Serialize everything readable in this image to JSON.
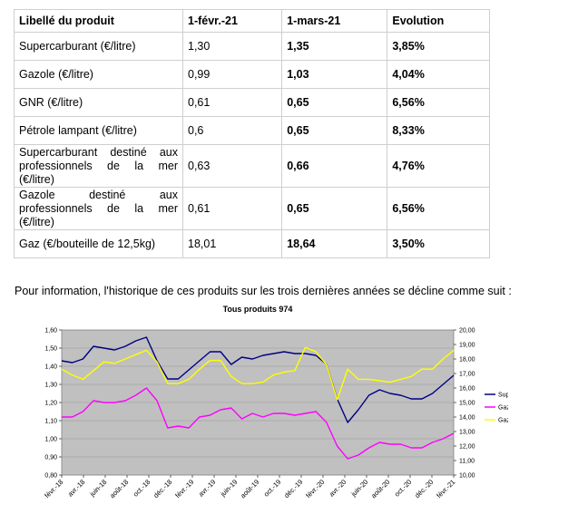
{
  "table": {
    "headers": [
      "Libellé du produit",
      "1-févr.-21",
      "1-mars-21",
      "Evolution"
    ],
    "rows": [
      {
        "label": "Supercarburant  (€/litre)",
        "feb": "1,30",
        "mar": "1,35",
        "evol": "3,85%"
      },
      {
        "label": "Gazole (€/litre)",
        "feb": "0,99",
        "mar": "1,03",
        "evol": "4,04%"
      },
      {
        "label": "GNR (€/litre)",
        "feb": "0,61",
        "mar": "0,65",
        "evol": "6,56%"
      },
      {
        "label": "Pétrole lampant (€/litre)",
        "feb": "0,6",
        "mar": "0,65",
        "evol": "8,33%"
      },
      {
        "label": "Supercarburant destiné aux professionnels de la mer (€/litre)",
        "feb": "0,63",
        "mar": "0,66",
        "evol": "4,76%"
      },
      {
        "label": "Gazole destiné aux professionnels de la mer (€/litre)",
        "feb": "0,61",
        "mar": "0,65",
        "evol": "6,56%"
      },
      {
        "label": "Gaz (€/bouteille de 12,5kg)",
        "feb": "18,01",
        "mar": "18,64",
        "evol": "3,50%"
      }
    ]
  },
  "intro_text": "Pour information, l'historique de ces produits sur les trois dernières années se décline comme suit :",
  "chart_data": {
    "type": "line",
    "title": "Tous produits 974",
    "x_tick_labels": [
      "févr.-18",
      "avr.-18",
      "juin-18",
      "août-18",
      "oct.-18",
      "déc.-18",
      "févr.-19",
      "avr.-19",
      "juin-19",
      "août-19",
      "oct.-19",
      "déc.-19",
      "févr.-20",
      "avr.-20",
      "juin-20",
      "août-20",
      "oct.-20",
      "déc.-20",
      "févr.-21"
    ],
    "y_left": {
      "min": 0.8,
      "max": 1.6,
      "ticks": [
        "0,80",
        "0,90",
        "1,00",
        "1,10",
        "1,20",
        "1,30",
        "1,40",
        "1,50",
        "1,60"
      ]
    },
    "y_right": {
      "min": 10,
      "max": 20,
      "ticks": [
        "10,00",
        "11,00",
        "12,00",
        "13,00",
        "14,00",
        "15,00",
        "16,00",
        "17,00",
        "18,00",
        "19,00",
        "20,00"
      ]
    },
    "colors": {
      "plot_bg": "#c0c0c0",
      "Super": "#000080",
      "Gazole": "#ff00ff",
      "Gaz": "#ffff00"
    },
    "series": [
      {
        "name": "Super",
        "axis": "left",
        "values": [
          1.43,
          1.42,
          1.44,
          1.51,
          1.5,
          1.49,
          1.51,
          1.54,
          1.56,
          1.43,
          1.33,
          1.33,
          1.38,
          1.43,
          1.48,
          1.48,
          1.41,
          1.45,
          1.44,
          1.46,
          1.47,
          1.48,
          1.47,
          1.47,
          1.46,
          1.41,
          1.22,
          1.09,
          1.16,
          1.24,
          1.27,
          1.25,
          1.24,
          1.22,
          1.22,
          1.25,
          1.3,
          1.35
        ]
      },
      {
        "name": "Gazole",
        "axis": "left",
        "values": [
          1.12,
          1.12,
          1.15,
          1.21,
          1.2,
          1.2,
          1.21,
          1.24,
          1.28,
          1.21,
          1.06,
          1.07,
          1.06,
          1.12,
          1.13,
          1.16,
          1.17,
          1.11,
          1.14,
          1.12,
          1.14,
          1.14,
          1.13,
          1.14,
          1.15,
          1.09,
          0.96,
          0.89,
          0.91,
          0.95,
          0.98,
          0.97,
          0.97,
          0.95,
          0.95,
          0.98,
          1.0,
          1.03
        ]
      },
      {
        "name": "Gaz",
        "axis": "right",
        "values": [
          17.3,
          16.9,
          16.6,
          17.2,
          17.8,
          17.7,
          18.0,
          18.3,
          18.6,
          17.8,
          16.3,
          16.3,
          16.6,
          17.3,
          17.9,
          17.9,
          16.8,
          16.3,
          16.3,
          16.4,
          16.9,
          17.1,
          17.2,
          18.8,
          18.5,
          17.6,
          15.2,
          17.3,
          16.6,
          16.6,
          16.5,
          16.4,
          16.6,
          16.8,
          17.3,
          17.3,
          18.0,
          18.6
        ]
      }
    ]
  }
}
